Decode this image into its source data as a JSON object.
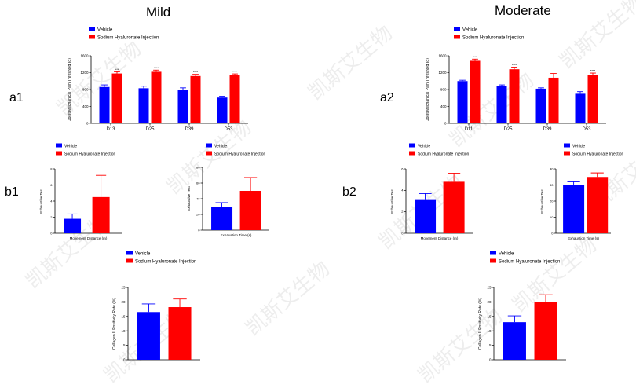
{
  "titles": {
    "mild": "Mild",
    "moderate": "Moderate"
  },
  "panel_labels": {
    "a1": "a1",
    "a2": "a2",
    "b1": "b1",
    "b2": "b2"
  },
  "watermark": "凯斯艾生物",
  "colors": {
    "vehicle": "#0000ff",
    "treatment": "#ff0000"
  },
  "chart_data": [
    {
      "id": "a1",
      "type": "bar",
      "categories": [
        "D13",
        "D25",
        "D39",
        "D53"
      ],
      "series": [
        {
          "name": "Vehicle",
          "values": [
            860,
            830,
            800,
            610
          ],
          "errors": [
            50,
            50,
            40,
            30
          ]
        },
        {
          "name": "Sodium Hyaluronate Injection",
          "values": [
            1180,
            1220,
            1120,
            1140
          ],
          "errors": [
            40,
            40,
            40,
            30
          ]
        }
      ],
      "ylabel": "Joint Mechanical Pain Threshold (g)",
      "ylim": [
        0,
        1600
      ],
      "yticks": [
        0,
        400,
        800,
        1200,
        1600
      ],
      "significance": [
        "***",
        "****",
        "****",
        "****"
      ]
    },
    {
      "id": "a2",
      "type": "bar",
      "categories": [
        "D11",
        "D25",
        "D39",
        "D53"
      ],
      "series": [
        {
          "name": "Vehicle",
          "values": [
            1000,
            880,
            820,
            700
          ],
          "errors": [
            20,
            30,
            20,
            50
          ]
        },
        {
          "name": "Sodium Hyaluronate Injection",
          "values": [
            1480,
            1280,
            1080,
            1150
          ],
          "errors": [
            40,
            50,
            100,
            40
          ]
        }
      ],
      "ylabel": "Joint Mechanical Pain Threshold (g)",
      "ylim": [
        0,
        1600
      ],
      "yticks": [
        0,
        400,
        800,
        1200,
        1600
      ],
      "significance": [
        "***",
        "****",
        "",
        "****"
      ]
    },
    {
      "id": "b1-distance",
      "type": "bar",
      "categories": [
        "Movement Distance (m)"
      ],
      "series": [
        {
          "name": "Vehicle",
          "values": [
            1.8
          ],
          "errors": [
            0.6
          ]
        },
        {
          "name": "Sodium Hyaluronate Injection",
          "values": [
            4.5
          ],
          "errors": [
            2.7
          ]
        }
      ],
      "ylabel": "Exhaustive Test",
      "xlabel": "Movement Distance (m)",
      "ylim": [
        0,
        8
      ],
      "yticks": [
        0,
        2,
        4,
        6,
        8
      ]
    },
    {
      "id": "b1-time",
      "type": "bar",
      "categories": [
        "Exhaustion Time (s)"
      ],
      "series": [
        {
          "name": "Vehicle",
          "values": [
            30
          ],
          "errors": [
            5
          ]
        },
        {
          "name": "Sodium Hyaluronate Injection",
          "values": [
            50
          ],
          "errors": [
            17
          ]
        }
      ],
      "ylabel": "Exhaustive Test",
      "xlabel": "Exhaustion Time (s)",
      "ylim": [
        0,
        80
      ],
      "yticks": [
        0,
        20,
        40,
        60,
        80
      ]
    },
    {
      "id": "b2-distance",
      "type": "bar",
      "categories": [
        "Movement Distance (m)"
      ],
      "series": [
        {
          "name": "Vehicle",
          "values": [
            3.1
          ],
          "errors": [
            0.6
          ]
        },
        {
          "name": "Sodium Hyaluronate Injection",
          "values": [
            4.8
          ],
          "errors": [
            0.8
          ]
        }
      ],
      "ylabel": "Exhaustive Test",
      "xlabel": "Movement Distance (m)",
      "ylim": [
        0,
        6
      ],
      "yticks": [
        0,
        2,
        4,
        6
      ]
    },
    {
      "id": "b2-time",
      "type": "bar",
      "categories": [
        "Exhaustion Time (s)"
      ],
      "series": [
        {
          "name": "Vehicle",
          "values": [
            30
          ],
          "errors": [
            2
          ]
        },
        {
          "name": "Sodium Hyaluronate Injection",
          "values": [
            35
          ],
          "errors": [
            2.5
          ]
        }
      ],
      "ylabel": "Exhaustive Test",
      "xlabel": "Exhaustion Time (s)",
      "ylim": [
        0,
        40
      ],
      "yticks": [
        0,
        10,
        20,
        30,
        40
      ]
    },
    {
      "id": "c1",
      "type": "bar",
      "categories": [
        ""
      ],
      "series": [
        {
          "name": "Vehicle",
          "values": [
            16.5
          ],
          "errors": [
            2.8
          ]
        },
        {
          "name": "Sodium Hyaluronate Injection",
          "values": [
            18.2
          ],
          "errors": [
            2.8
          ]
        }
      ],
      "ylabel": "Collagen II Positivity Rate (%)",
      "ylim": [
        0,
        25
      ],
      "yticks": [
        0,
        5,
        10,
        15,
        20,
        25
      ]
    },
    {
      "id": "c2",
      "type": "bar",
      "categories": [
        ""
      ],
      "series": [
        {
          "name": "Vehicle",
          "values": [
            13
          ],
          "errors": [
            2.2
          ]
        },
        {
          "name": "Sodium Hyaluronate Injection",
          "values": [
            20
          ],
          "errors": [
            2.5
          ]
        }
      ],
      "ylabel": "Collagen II Positivity Rate (%)",
      "ylim": [
        0,
        25
      ],
      "yticks": [
        0,
        5,
        10,
        15,
        20,
        25
      ]
    }
  ]
}
